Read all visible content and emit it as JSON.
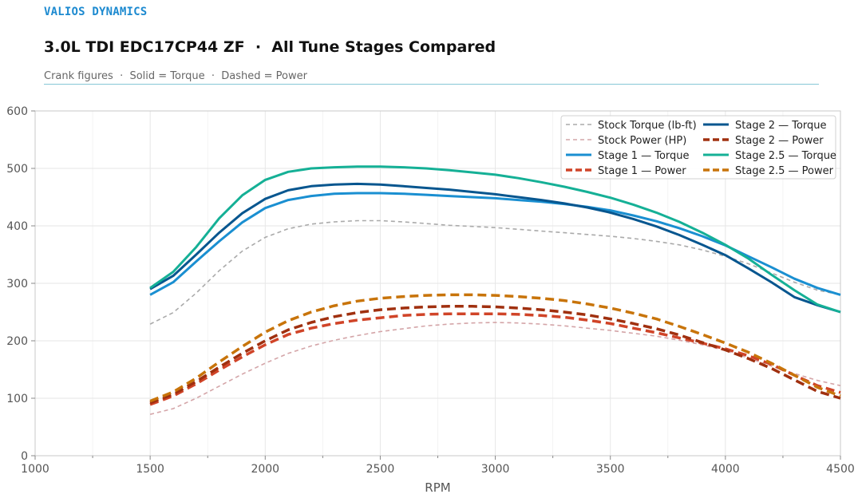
{
  "header": {
    "brand": "VALIOS DYNAMICS",
    "title": "3.0L TDI EDC17CP44 ZF  ·  All Tune Stages Compared",
    "subtitle": "Crank figures  ·  Solid = Torque  ·  Dashed = Power"
  },
  "chart_data": {
    "type": "line",
    "title": "3.0L TDI EDC17CP44 ZF  ·  All Tune Stages Compared",
    "subtitle": "Crank figures  ·  Solid = Torque  ·  Dashed = Power",
    "xlabel": "RPM",
    "ylabel": "",
    "xlim": [
      1000,
      4500
    ],
    "ylim": [
      0,
      600
    ],
    "x_ticks": [
      1000,
      1500,
      2000,
      2500,
      3000,
      3500,
      4000,
      4500
    ],
    "y_ticks": [
      0,
      100,
      200,
      300,
      400,
      500,
      600
    ],
    "grid": true,
    "legend_position": "top-right",
    "x": [
      1500,
      1600,
      1700,
      1800,
      1900,
      2000,
      2100,
      2200,
      2300,
      2400,
      2500,
      2600,
      2700,
      2800,
      2900,
      3000,
      3100,
      3200,
      3300,
      3400,
      3500,
      3600,
      3700,
      3800,
      3900,
      4000,
      4100,
      4200,
      4300,
      4400,
      4500
    ],
    "series": [
      {
        "name": "Stock Torque (lb-ft)",
        "style": "dashed-thin",
        "color": "#aaaaaa",
        "values": [
          229,
          249,
          283,
          322,
          356,
          380,
          395,
          403,
          407,
          409,
          409,
          407,
          404,
          401,
          399,
          397,
          394,
          391,
          388,
          385,
          382,
          378,
          373,
          367,
          358,
          347,
          334,
          318,
          302,
          288,
          280
        ]
      },
      {
        "name": "Stock Power (HP)",
        "style": "dashed-thin",
        "color": "#d4a5a8",
        "values": [
          72,
          82,
          100,
          121,
          142,
          161,
          178,
          191,
          201,
          209,
          216,
          221,
          226,
          229,
          231,
          232,
          231,
          229,
          226,
          222,
          218,
          213,
          208,
          201,
          193,
          183,
          170,
          156,
          143,
          131,
          122
        ]
      },
      {
        "name": "Stage 1 — Torque",
        "style": "solid",
        "color": "#1a8fd1",
        "values": [
          280,
          302,
          338,
          373,
          406,
          431,
          445,
          452,
          456,
          457,
          457,
          456,
          454,
          452,
          450,
          448,
          445,
          442,
          438,
          433,
          427,
          418,
          408,
          396,
          382,
          366,
          347,
          328,
          308,
          292,
          280
        ]
      },
      {
        "name": "Stage 1 — Power",
        "style": "dashed",
        "color": "#d04428",
        "values": [
          89,
          104,
          125,
          149,
          172,
          193,
          211,
          222,
          230,
          236,
          240,
          244,
          246,
          247,
          247,
          247,
          246,
          244,
          241,
          236,
          230,
          222,
          214,
          205,
          196,
          186,
          174,
          159,
          140,
          122,
          110
        ]
      },
      {
        "name": "Stage 2 — Torque",
        "style": "solid",
        "color": "#07568f",
        "values": [
          290,
          313,
          350,
          388,
          422,
          447,
          462,
          469,
          472,
          473,
          472,
          469,
          466,
          463,
          459,
          455,
          450,
          445,
          439,
          432,
          423,
          412,
          399,
          384,
          367,
          349,
          326,
          302,
          276,
          262,
          250
        ]
      },
      {
        "name": "Stage 2 — Power",
        "style": "dashed",
        "color": "#a0300f",
        "values": [
          92,
          107,
          129,
          154,
          178,
          200,
          219,
          232,
          242,
          249,
          254,
          257,
          259,
          260,
          260,
          259,
          257,
          254,
          250,
          245,
          238,
          230,
          221,
          210,
          197,
          184,
          169,
          152,
          132,
          112,
          100
        ]
      },
      {
        "name": "Stage 2.5 — Torque",
        "style": "solid",
        "color": "#15b096",
        "values": [
          292,
          320,
          363,
          413,
          453,
          480,
          494,
          500,
          502,
          503,
          503,
          502,
          500,
          497,
          493,
          489,
          483,
          476,
          468,
          459,
          449,
          437,
          423,
          407,
          388,
          367,
          343,
          315,
          288,
          263,
          250
        ]
      },
      {
        "name": "Stage 2.5 — Power",
        "style": "dashed",
        "color": "#c8740a",
        "values": [
          95,
          111,
          135,
          163,
          190,
          215,
          235,
          250,
          261,
          269,
          274,
          277,
          279,
          280,
          280,
          279,
          277,
          274,
          270,
          264,
          257,
          248,
          238,
          225,
          211,
          196,
          180,
          161,
          140,
          119,
          104
        ]
      }
    ]
  }
}
